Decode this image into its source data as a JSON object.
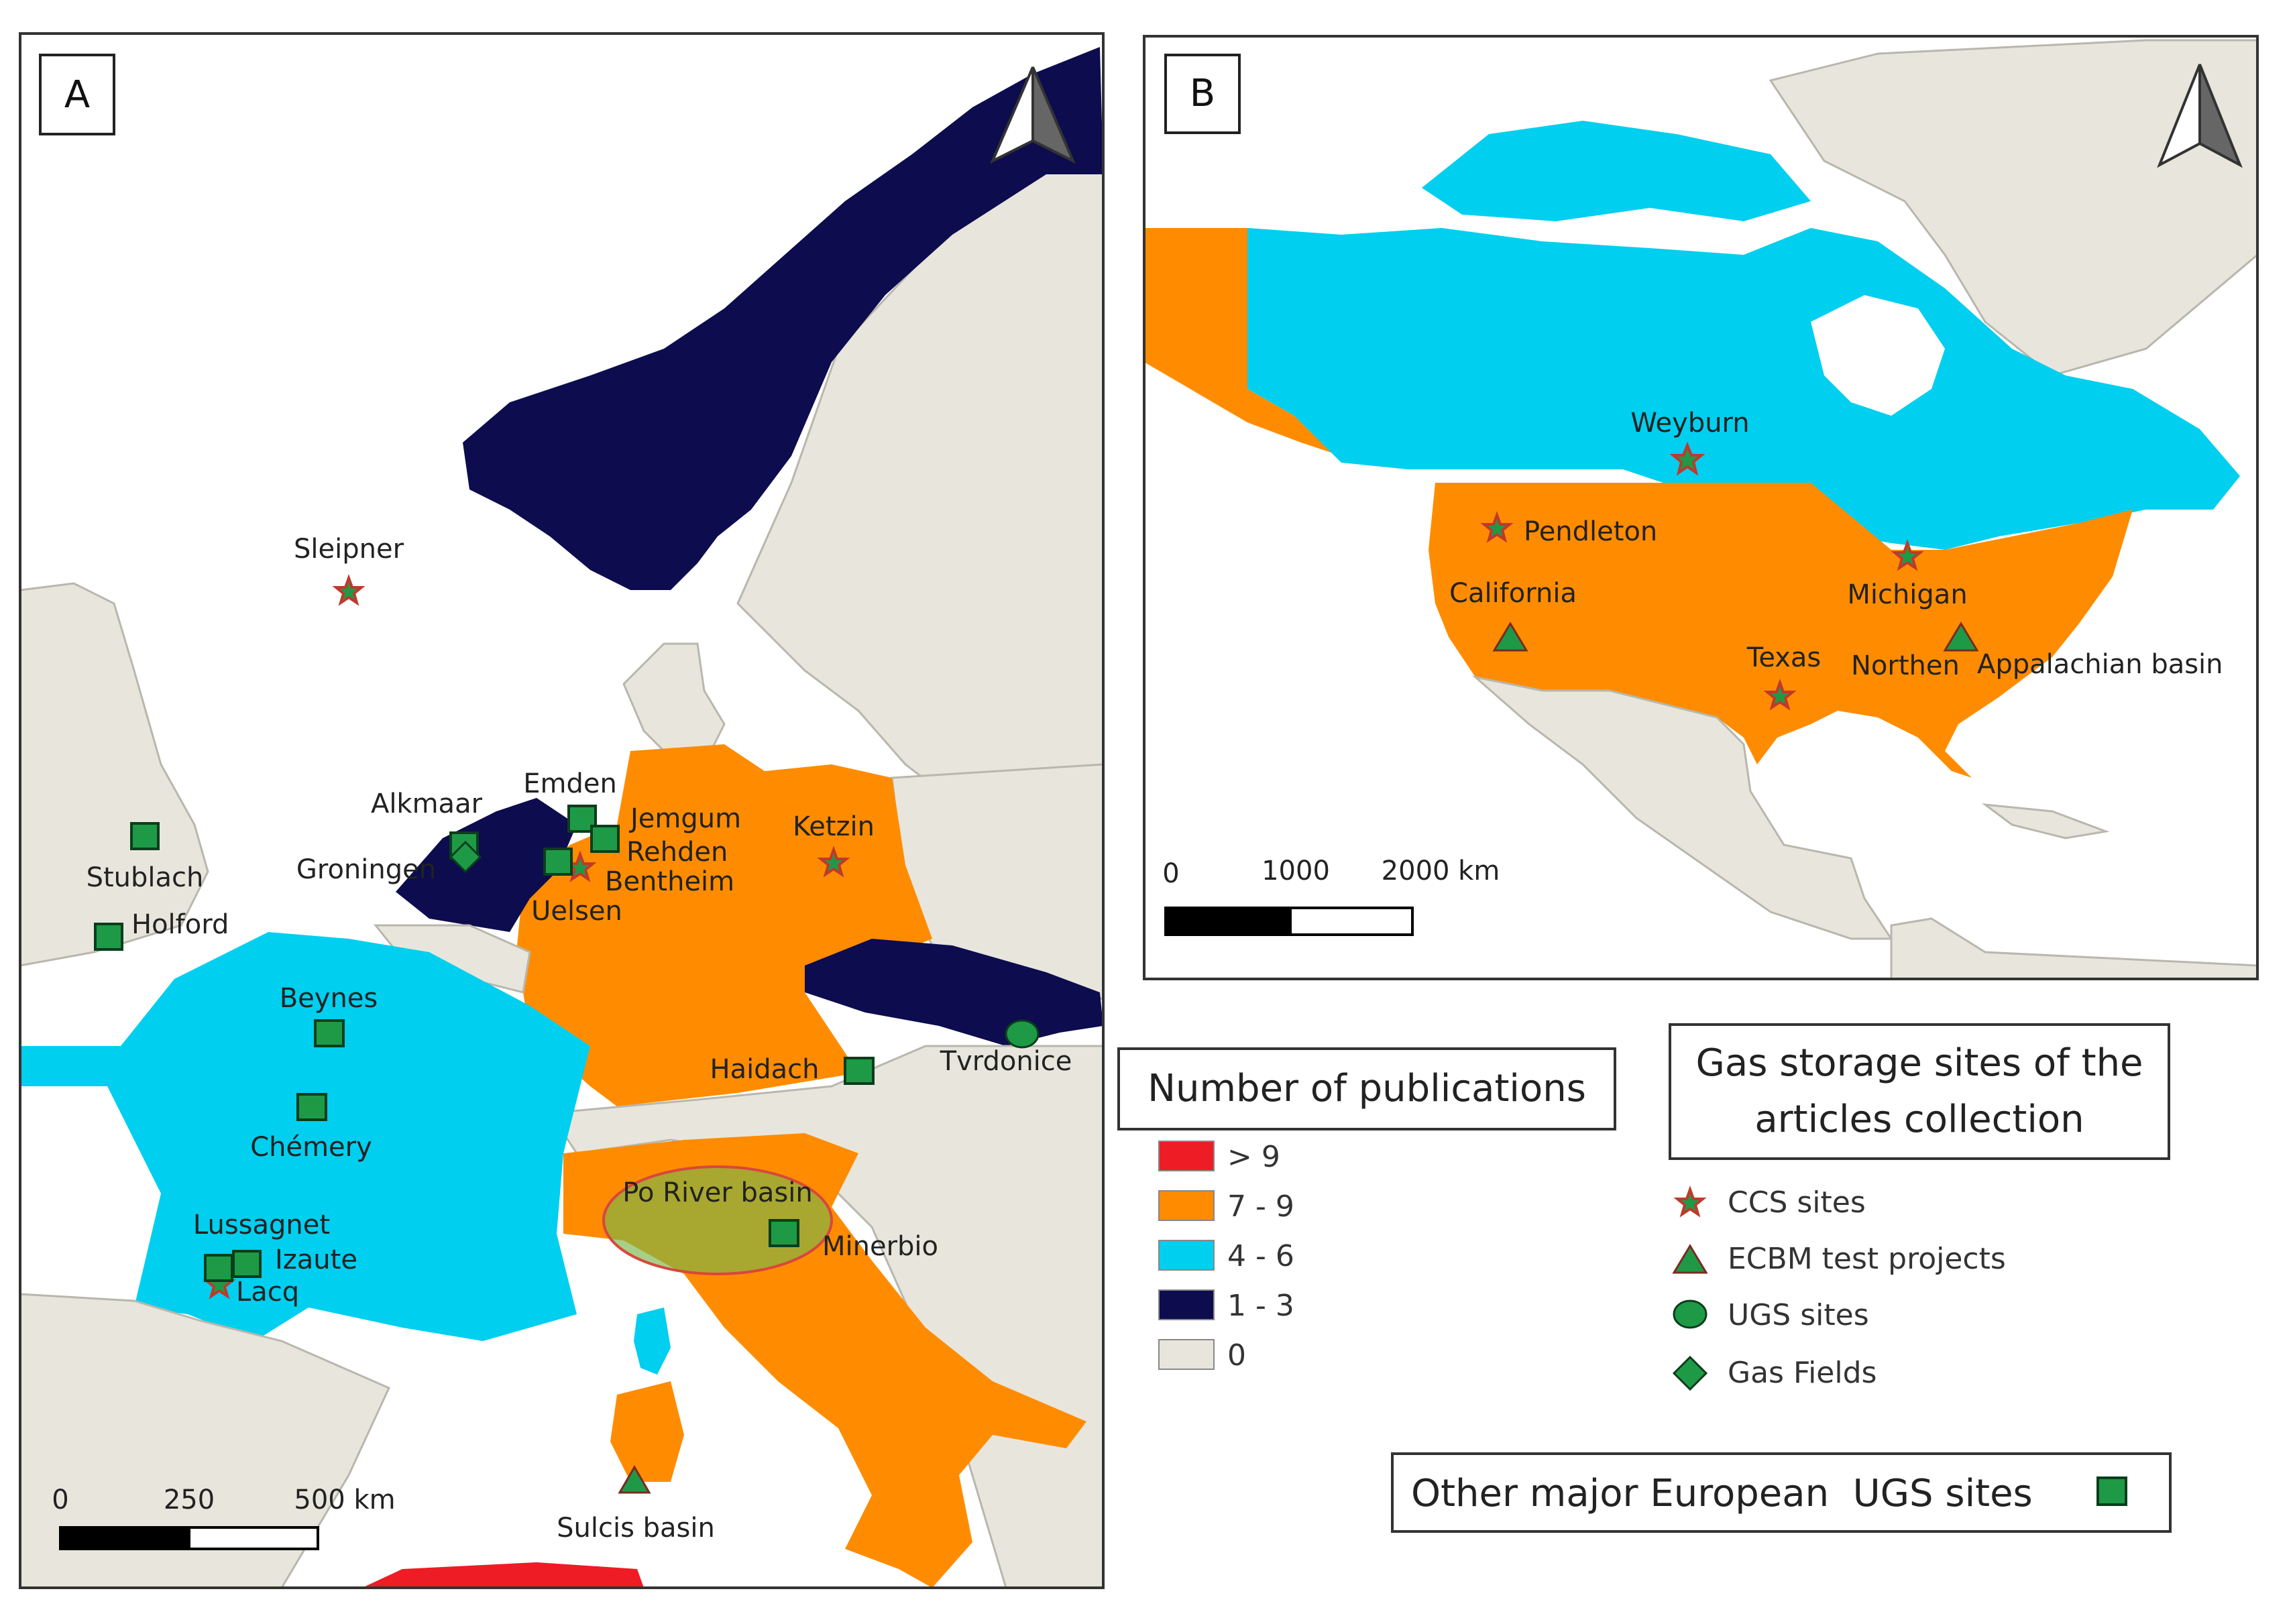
{
  "panel_a": {
    "letter": "A",
    "sites": [
      {
        "name": "Sleipner",
        "type": "ccs"
      },
      {
        "name": "Alkmaar",
        "type": "ugs_major"
      },
      {
        "name": "Groningen",
        "type": "gas_field"
      },
      {
        "name": "Emden",
        "type": "ugs_major"
      },
      {
        "name": "Jemgum",
        "type": "ugs_major"
      },
      {
        "name": "Rehden",
        "type": "ugs_major"
      },
      {
        "name": "Bentheim",
        "type": "ccs"
      },
      {
        "name": "Uelsen",
        "type": "ugs_major"
      },
      {
        "name": "Ketzin",
        "type": "ccs"
      },
      {
        "name": "Stublach",
        "type": "ugs_major"
      },
      {
        "name": "Holford",
        "type": "ugs_major"
      },
      {
        "name": "Beynes",
        "type": "ugs_major"
      },
      {
        "name": "Chémery",
        "type": "ugs_major"
      },
      {
        "name": "Lussagnet",
        "type": "ugs_major"
      },
      {
        "name": "Izaute",
        "type": "ugs_major"
      },
      {
        "name": "Lacq",
        "type": "ccs"
      },
      {
        "name": "Haidach",
        "type": "ugs_major"
      },
      {
        "name": "Tvrdonice",
        "type": "ugs"
      },
      {
        "name": "Po River basin",
        "type": "area"
      },
      {
        "name": "Minerbio",
        "type": "ugs_major"
      },
      {
        "name": "Sulcis basin",
        "type": "ecbm"
      }
    ],
    "scale": {
      "labels": [
        "0",
        "250",
        "500 km"
      ]
    }
  },
  "panel_b": {
    "letter": "B",
    "sites": [
      {
        "name": "Weyburn",
        "type": "ccs"
      },
      {
        "name": "Pendleton",
        "type": "ccs"
      },
      {
        "name": "California",
        "type": "ecbm"
      },
      {
        "name": "Michigan",
        "type": "ccs"
      },
      {
        "name": "Texas",
        "type": "ccs"
      },
      {
        "name": "Northen",
        "type": "ecbm"
      },
      {
        "name": "Appalachian basin",
        "type": "text"
      }
    ],
    "scale": {
      "labels": [
        "0",
        "1000",
        "2000 km"
      ]
    }
  },
  "legend_publications": {
    "title": "Number of publications",
    "classes": [
      {
        "label": "> 9",
        "color": "#ee1c24"
      },
      {
        "label": "7 - 9",
        "color": "#ff8c00"
      },
      {
        "label": "4 - 6",
        "color": "#00cfef"
      },
      {
        "label": "1 - 3",
        "color": "#0c0c4e"
      },
      {
        "label": "0",
        "color": "#e8e6dc"
      }
    ]
  },
  "legend_sites": {
    "title_line1": "Gas storage sites of the",
    "title_line2": "articles collection",
    "items": [
      {
        "label": "CCS sites",
        "icon": "star-icon"
      },
      {
        "label": "ECBM test projects",
        "icon": "triangle-icon"
      },
      {
        "label": "UGS sites",
        "icon": "circle-icon"
      },
      {
        "label": "Gas Fields",
        "icon": "diamond-icon"
      }
    ]
  },
  "legend_other": {
    "label": "Other major European  UGS sites",
    "icon": "square-icon"
  },
  "colors": {
    "sea": "#ffffff",
    "land_zero": "#e8e6dc",
    "marker_fill": "#1e9a47",
    "star_edge": "#c0392b"
  }
}
